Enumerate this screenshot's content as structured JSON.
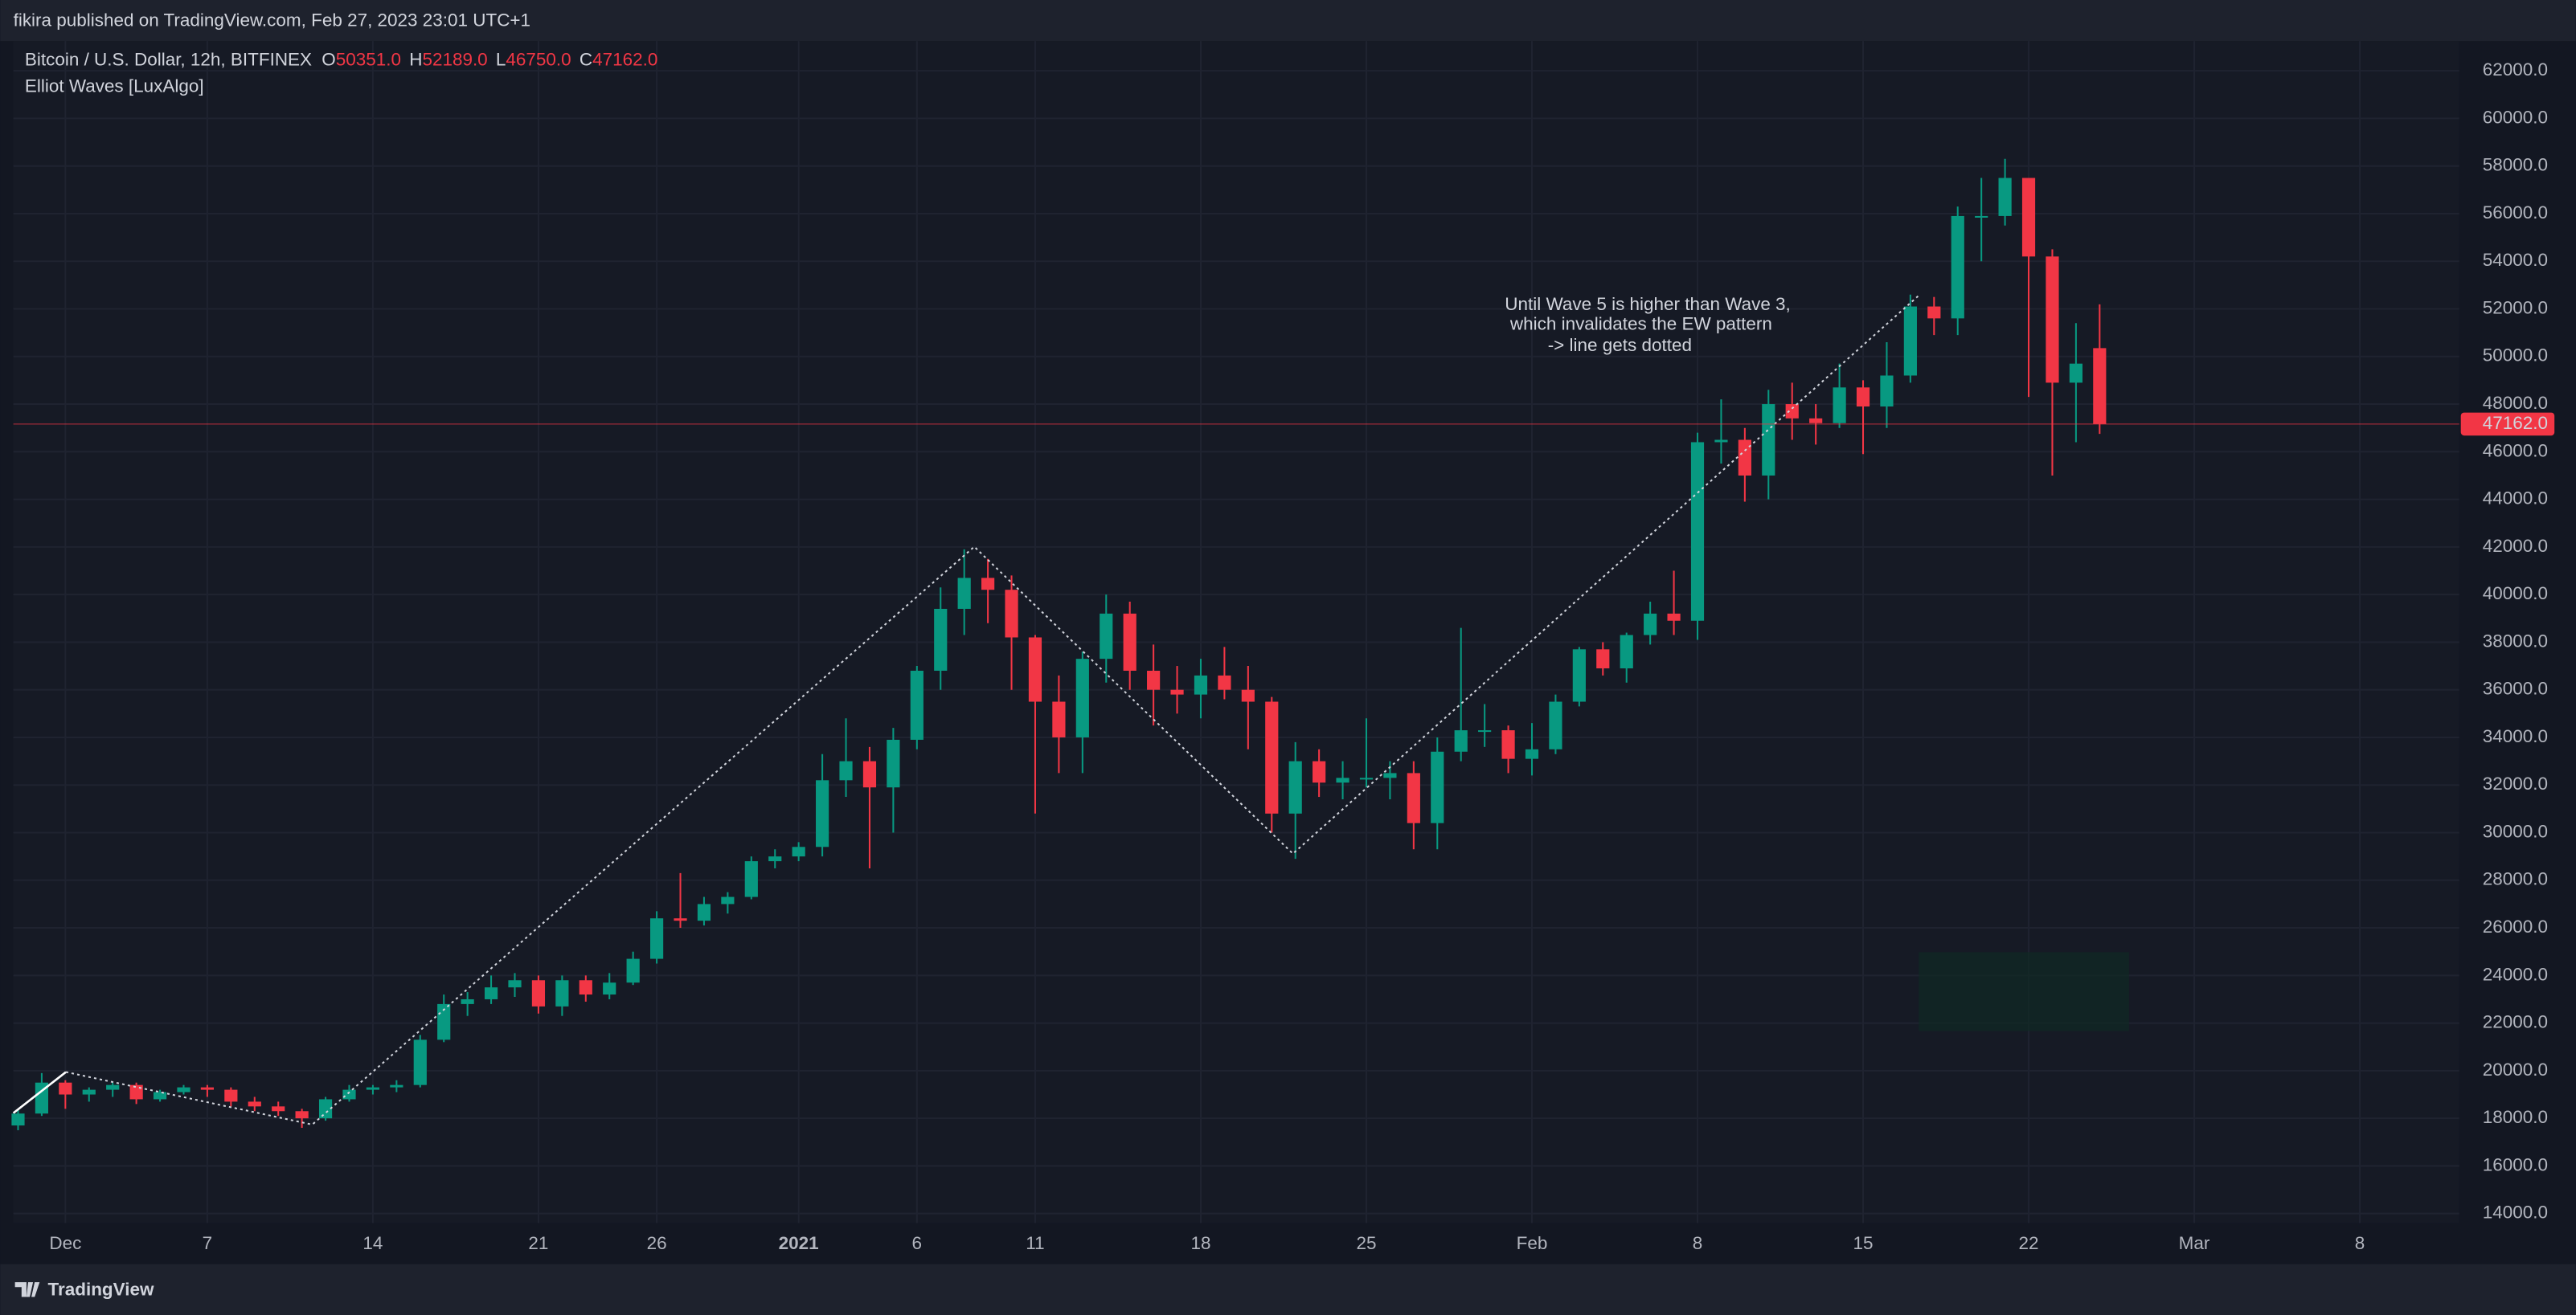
{
  "header": {
    "publisher": "fikira published on TradingView.com, Feb 27, 2023 23:01 UTC+1",
    "symbol": "Bitcoin / U.S. Dollar, 12h, BITFINEX",
    "indicator": "Elliot Waves [LuxAlgo]",
    "ohlc": [
      {
        "key": "O",
        "value": "50351.0"
      },
      {
        "key": "H",
        "value": "52189.0"
      },
      {
        "key": "L",
        "value": "46750.0"
      },
      {
        "key": "C",
        "value": "47162.0"
      }
    ]
  },
  "footer": {
    "logo": "TradingView"
  },
  "chart_data": {
    "type": "candlestick",
    "up_color": "#089981",
    "down_color": "#f23645",
    "annotation": [
      "Until Wave 5 is higher than Wave 3,",
      "which invalidates the EW pattern",
      "-> line gets dotted"
    ],
    "last_price": 47162,
    "last_price_label": "47162.0",
    "xlim": [
      -0.2,
      103.2
    ],
    "ylim": [
      13600,
      63250
    ],
    "grid": true,
    "xticks": [
      {
        "value": 2,
        "label": "Dec"
      },
      {
        "value": 8,
        "label": "7"
      },
      {
        "value": 15,
        "label": "14"
      },
      {
        "value": 22,
        "label": "21"
      },
      {
        "value": 27,
        "label": "26"
      },
      {
        "value": 33,
        "label": "2021"
      },
      {
        "value": 38,
        "label": "6"
      },
      {
        "value": 43,
        "label": "11"
      },
      {
        "value": 50,
        "label": "18"
      },
      {
        "value": 57,
        "label": "25"
      },
      {
        "value": 64,
        "label": "Feb"
      },
      {
        "value": 71,
        "label": "8"
      },
      {
        "value": 78,
        "label": "15"
      },
      {
        "value": 85,
        "label": "22"
      },
      {
        "value": 92,
        "label": "Mar"
      },
      {
        "value": 99,
        "label": "8"
      }
    ],
    "yticks": [
      {
        "value": 14000,
        "label": "14000.0"
      },
      {
        "value": 16000,
        "label": "16000.0"
      },
      {
        "value": 18000,
        "label": "18000.0"
      },
      {
        "value": 20000,
        "label": "20000.0"
      },
      {
        "value": 22000,
        "label": "22000.0"
      },
      {
        "value": 24000,
        "label": "24000.0"
      },
      {
        "value": 26000,
        "label": "26000.0"
      },
      {
        "value": 28000,
        "label": "28000.0"
      },
      {
        "value": 30000,
        "label": "30000.0"
      },
      {
        "value": 32000,
        "label": "32000.0"
      },
      {
        "value": 34000,
        "label": "34000.0"
      },
      {
        "value": 36000,
        "label": "36000.0"
      },
      {
        "value": 38000,
        "label": "38000.0"
      },
      {
        "value": 40000,
        "label": "40000.0"
      },
      {
        "value": 42000,
        "label": "42000.0"
      },
      {
        "value": 44000,
        "label": "44000.0"
      },
      {
        "value": 46000,
        "label": "46000.0"
      },
      {
        "value": 48000,
        "label": "48000.0"
      },
      {
        "value": 50000,
        "label": "50000.0"
      },
      {
        "value": 52000,
        "label": "52000.0"
      },
      {
        "value": 54000,
        "label": "54000.0"
      },
      {
        "value": 56000,
        "label": "56000.0"
      },
      {
        "value": 58000,
        "label": "58000.0"
      },
      {
        "value": 60000,
        "label": "60000.0"
      },
      {
        "value": 62000,
        "label": "62000.0"
      }
    ],
    "candles": [
      [
        17700,
        18400,
        17500,
        18200
      ],
      [
        18200,
        19900,
        18100,
        19500
      ],
      [
        19500,
        19600,
        18400,
        19000
      ],
      [
        19000,
        19300,
        18700,
        19200
      ],
      [
        19200,
        19500,
        18900,
        19400
      ],
      [
        19400,
        19500,
        18600,
        18800
      ],
      [
        18800,
        19200,
        18700,
        19100
      ],
      [
        19100,
        19400,
        19000,
        19300
      ],
      [
        19300,
        19400,
        18900,
        19200
      ],
      [
        19200,
        19300,
        18500,
        18700
      ],
      [
        18700,
        18900,
        18300,
        18500
      ],
      [
        18500,
        18700,
        18100,
        18300
      ],
      [
        18300,
        18400,
        17600,
        18000
      ],
      [
        18000,
        18900,
        17900,
        18800
      ],
      [
        18800,
        19400,
        18700,
        19200
      ],
      [
        19200,
        19400,
        19000,
        19300
      ],
      [
        19300,
        19600,
        19100,
        19400
      ],
      [
        19400,
        21500,
        19300,
        21300
      ],
      [
        21300,
        23200,
        21200,
        22800
      ],
      [
        22800,
        23300,
        22300,
        23000
      ],
      [
        23000,
        24000,
        22800,
        23500
      ],
      [
        23500,
        24100,
        23100,
        23800
      ],
      [
        23800,
        24000,
        22400,
        22700
      ],
      [
        22700,
        24000,
        22300,
        23800
      ],
      [
        23800,
        24000,
        22900,
        23200
      ],
      [
        23200,
        24100,
        23000,
        23700
      ],
      [
        23700,
        25000,
        23600,
        24700
      ],
      [
        24700,
        26700,
        24500,
        26400
      ],
      [
        26400,
        28300,
        26000,
        26300
      ],
      [
        26300,
        27300,
        26100,
        27000
      ],
      [
        27000,
        27500,
        26600,
        27300
      ],
      [
        27300,
        29000,
        27200,
        28800
      ],
      [
        28800,
        29300,
        28500,
        29000
      ],
      [
        29000,
        29600,
        28800,
        29400
      ],
      [
        29400,
        33300,
        29000,
        32200
      ],
      [
        32200,
        34800,
        31500,
        33000
      ],
      [
        33000,
        33600,
        28500,
        31900
      ],
      [
        31900,
        34400,
        30000,
        33900
      ],
      [
        33900,
        37000,
        33500,
        36800
      ],
      [
        36800,
        40300,
        36000,
        39400
      ],
      [
        39400,
        41900,
        38300,
        40700
      ],
      [
        40700,
        41500,
        38800,
        40200
      ],
      [
        40200,
        40800,
        36000,
        38200
      ],
      [
        38200,
        38300,
        30800,
        35500
      ],
      [
        35500,
        36600,
        32500,
        34000
      ],
      [
        34000,
        37600,
        32500,
        37300
      ],
      [
        37300,
        40000,
        36300,
        39200
      ],
      [
        39200,
        39700,
        36000,
        36800
      ],
      [
        36800,
        37900,
        34500,
        36000
      ],
      [
        36000,
        37000,
        35000,
        35800
      ],
      [
        35800,
        37300,
        34800,
        36600
      ],
      [
        36600,
        37800,
        35600,
        36000
      ],
      [
        36000,
        37000,
        33500,
        35500
      ],
      [
        35500,
        35700,
        30000,
        30800
      ],
      [
        30800,
        33800,
        28900,
        33000
      ],
      [
        33000,
        33500,
        31500,
        32100
      ],
      [
        32100,
        33000,
        31400,
        32300
      ],
      [
        32300,
        34800,
        31900,
        32300
      ],
      [
        32300,
        33000,
        31400,
        32500
      ],
      [
        32500,
        33000,
        29300,
        30400
      ],
      [
        30400,
        34000,
        29300,
        33400
      ],
      [
        33400,
        38600,
        33000,
        34300
      ],
      [
        34300,
        35400,
        33600,
        34300
      ],
      [
        34300,
        34500,
        32500,
        33100
      ],
      [
        33100,
        34600,
        32400,
        33500
      ],
      [
        33500,
        35800,
        33300,
        35500
      ],
      [
        35500,
        37800,
        35300,
        37700
      ],
      [
        37700,
        38000,
        36600,
        36900
      ],
      [
        36900,
        38400,
        36300,
        38300
      ],
      [
        38300,
        39700,
        37900,
        39200
      ],
      [
        39200,
        41000,
        38300,
        38900
      ],
      [
        38900,
        46800,
        38100,
        46400
      ],
      [
        46400,
        48200,
        45500,
        46500
      ],
      [
        46500,
        47000,
        43900,
        45000
      ],
      [
        45000,
        48600,
        44000,
        48000
      ],
      [
        48000,
        48900,
        46500,
        47400
      ],
      [
        47400,
        48000,
        46300,
        47200
      ],
      [
        47200,
        49700,
        47000,
        48700
      ],
      [
        48700,
        49000,
        45900,
        47900
      ],
      [
        47900,
        50600,
        47000,
        49200
      ],
      [
        49200,
        52600,
        48900,
        52100
      ],
      [
        52100,
        52500,
        50900,
        51600
      ],
      [
        51600,
        56300,
        50900,
        55900
      ],
      [
        55900,
        57500,
        54000,
        55900
      ],
      [
        55900,
        58300,
        55500,
        57500
      ],
      [
        57500,
        57500,
        48300,
        54200
      ],
      [
        54200,
        54500,
        45000,
        48900
      ],
      [
        48900,
        51400,
        46400,
        49700
      ],
      [
        50351,
        52189,
        46750,
        47162
      ]
    ]
  }
}
